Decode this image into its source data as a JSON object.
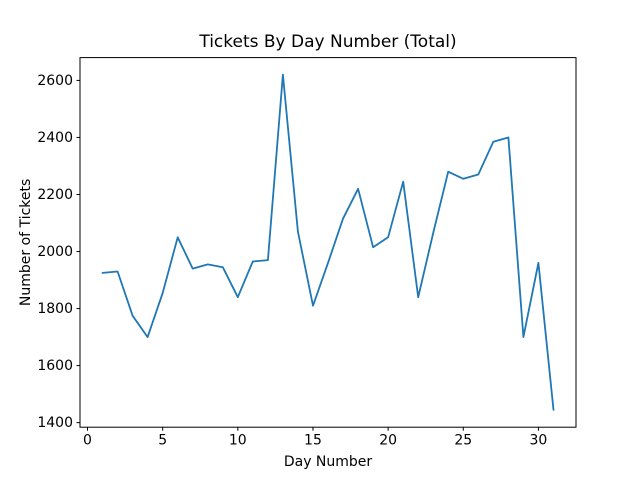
{
  "figure": {
    "background": "#ffffff",
    "frame_color": "#000000"
  },
  "chart_data": {
    "type": "line",
    "title": "Tickets By Day Number (Total)",
    "xlabel": "Day Number",
    "ylabel": "Number of Tickets",
    "x": [
      1,
      2,
      3,
      4,
      5,
      6,
      7,
      8,
      9,
      10,
      11,
      12,
      13,
      14,
      15,
      16,
      17,
      18,
      19,
      20,
      21,
      22,
      23,
      24,
      25,
      26,
      27,
      28,
      29,
      30,
      31
    ],
    "y": [
      1925,
      1930,
      1775,
      1700,
      1855,
      2050,
      1940,
      1955,
      1945,
      1840,
      1965,
      1970,
      2620,
      2070,
      1810,
      1960,
      2115,
      2220,
      2015,
      2050,
      2245,
      1840,
      2065,
      2280,
      2255,
      2270,
      2385,
      2400,
      1700,
      1960,
      1445
    ],
    "x_ticks": [
      0,
      5,
      10,
      15,
      20,
      25,
      30
    ],
    "y_ticks": [
      1400,
      1600,
      1800,
      2000,
      2200,
      2400,
      2600
    ],
    "xlim": [
      -0.5,
      32.5
    ],
    "ylim": [
      1384,
      2680
    ],
    "line_color": "#1f77b4",
    "grid": false,
    "legend_position": "none"
  }
}
